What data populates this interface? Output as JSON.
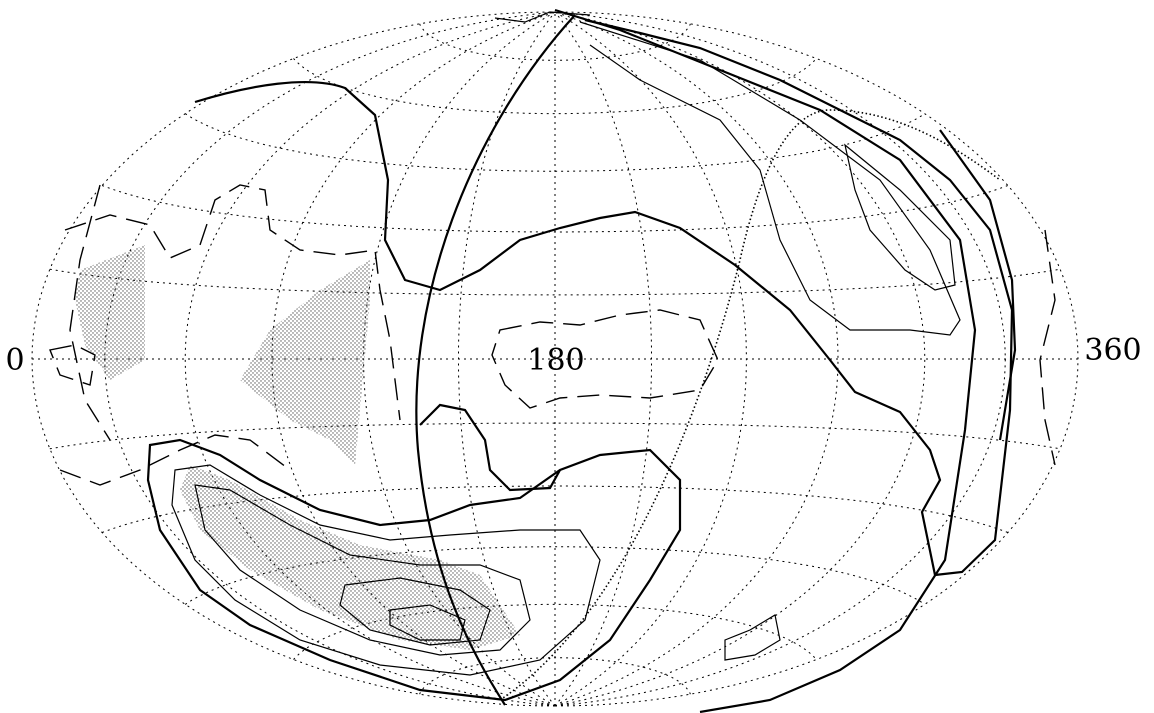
{
  "longitude_labels": [
    "0",
    "180",
    "360"
  ]
}
